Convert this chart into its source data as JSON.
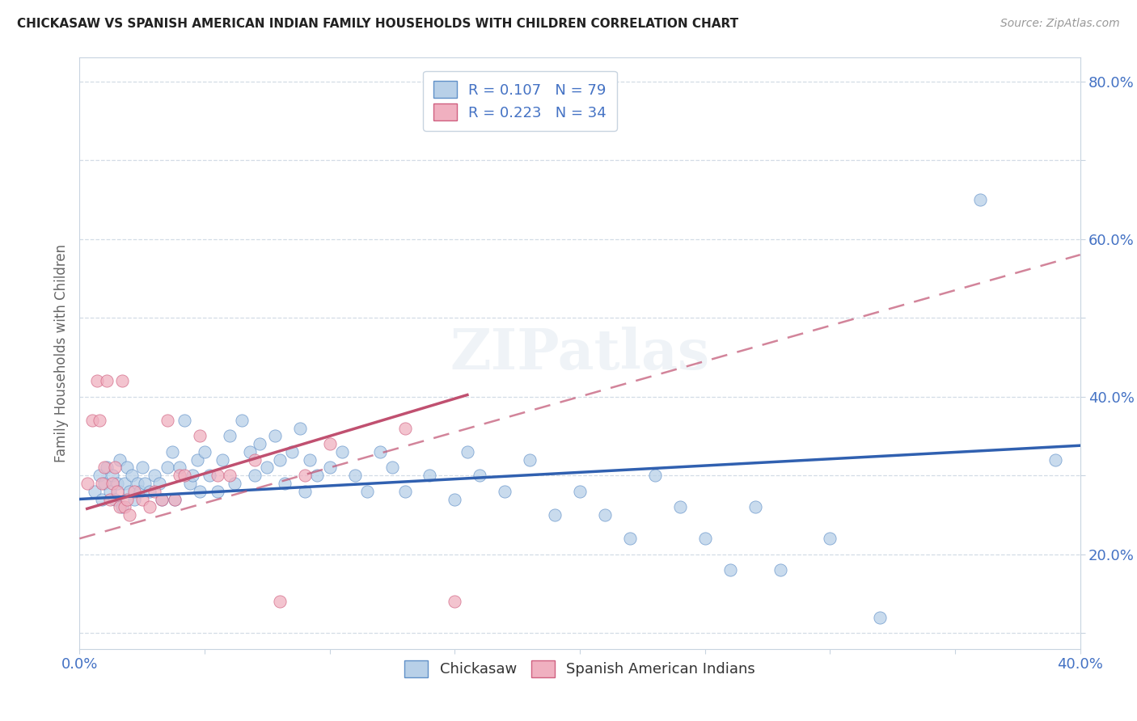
{
  "title": "CHICKASAW VS SPANISH AMERICAN INDIAN FAMILY HOUSEHOLDS WITH CHILDREN CORRELATION CHART",
  "source": "Source: ZipAtlas.com",
  "ylabel": "Family Households with Children",
  "xlim": [
    0.0,
    0.4
  ],
  "ylim": [
    0.08,
    0.83
  ],
  "chickasaw_face": "#b8d0e8",
  "chickasaw_edge": "#6090c8",
  "spanish_face": "#f0b0c0",
  "spanish_edge": "#d06080",
  "trendline_blue": "#3060b0",
  "trendline_pink": "#c05070",
  "watermark": "ZIPatlas",
  "blue_intercept": 0.27,
  "blue_slope": 0.17,
  "pink_intercept": 0.22,
  "pink_slope": 0.9,
  "blue_x": [
    0.006,
    0.008,
    0.009,
    0.01,
    0.011,
    0.012,
    0.013,
    0.014,
    0.015,
    0.016,
    0.017,
    0.018,
    0.019,
    0.02,
    0.021,
    0.022,
    0.023,
    0.024,
    0.025,
    0.026,
    0.028,
    0.03,
    0.032,
    0.033,
    0.035,
    0.037,
    0.038,
    0.04,
    0.042,
    0.044,
    0.045,
    0.047,
    0.048,
    0.05,
    0.052,
    0.055,
    0.057,
    0.06,
    0.062,
    0.065,
    0.068,
    0.07,
    0.072,
    0.075,
    0.078,
    0.08,
    0.082,
    0.085,
    0.088,
    0.09,
    0.092,
    0.095,
    0.1,
    0.105,
    0.11,
    0.115,
    0.12,
    0.125,
    0.13,
    0.14,
    0.15,
    0.155,
    0.16,
    0.17,
    0.18,
    0.19,
    0.2,
    0.21,
    0.22,
    0.23,
    0.24,
    0.25,
    0.26,
    0.27,
    0.28,
    0.3,
    0.32,
    0.36,
    0.39
  ],
  "blue_y": [
    0.28,
    0.3,
    0.27,
    0.29,
    0.31,
    0.28,
    0.3,
    0.27,
    0.29,
    0.32,
    0.26,
    0.29,
    0.31,
    0.28,
    0.3,
    0.27,
    0.29,
    0.28,
    0.31,
    0.29,
    0.28,
    0.3,
    0.29,
    0.27,
    0.31,
    0.33,
    0.27,
    0.31,
    0.37,
    0.29,
    0.3,
    0.32,
    0.28,
    0.33,
    0.3,
    0.28,
    0.32,
    0.35,
    0.29,
    0.37,
    0.33,
    0.3,
    0.34,
    0.31,
    0.35,
    0.32,
    0.29,
    0.33,
    0.36,
    0.28,
    0.32,
    0.3,
    0.31,
    0.33,
    0.3,
    0.28,
    0.33,
    0.31,
    0.28,
    0.3,
    0.27,
    0.33,
    0.3,
    0.28,
    0.32,
    0.25,
    0.28,
    0.25,
    0.22,
    0.3,
    0.26,
    0.22,
    0.18,
    0.26,
    0.18,
    0.22,
    0.12,
    0.65,
    0.32
  ],
  "pink_x": [
    0.003,
    0.005,
    0.007,
    0.008,
    0.009,
    0.01,
    0.011,
    0.012,
    0.013,
    0.014,
    0.015,
    0.016,
    0.017,
    0.018,
    0.019,
    0.02,
    0.022,
    0.025,
    0.028,
    0.03,
    0.033,
    0.035,
    0.038,
    0.04,
    0.042,
    0.048,
    0.055,
    0.06,
    0.07,
    0.08,
    0.09,
    0.1,
    0.13,
    0.15
  ],
  "pink_y": [
    0.29,
    0.37,
    0.42,
    0.37,
    0.29,
    0.31,
    0.42,
    0.27,
    0.29,
    0.31,
    0.28,
    0.26,
    0.42,
    0.26,
    0.27,
    0.25,
    0.28,
    0.27,
    0.26,
    0.28,
    0.27,
    0.37,
    0.27,
    0.3,
    0.3,
    0.35,
    0.3,
    0.3,
    0.32,
    0.14,
    0.3,
    0.34,
    0.36,
    0.14
  ]
}
